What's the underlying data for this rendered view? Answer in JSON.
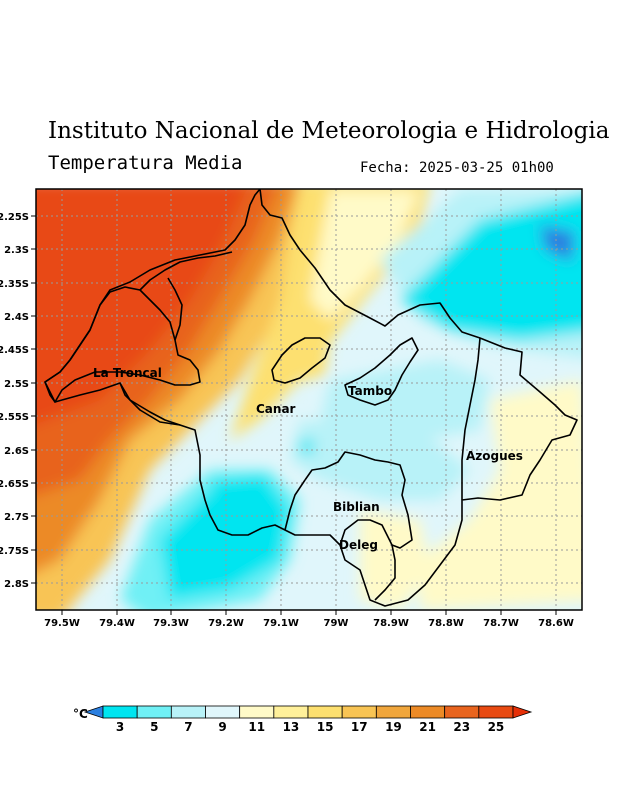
{
  "header": {
    "institution": "Instituto Nacional de Meteorologia e Hidrologia",
    "variable": "Temperatura Media",
    "date_label": "Fecha: 2025-03-25 01h00"
  },
  "map": {
    "lat_labels": [
      "2.25S",
      "2.3S",
      "2.35S",
      "2.4S",
      "2.45S",
      "2.5S",
      "2.55S",
      "2.6S",
      "2.65S",
      "2.7S",
      "2.75S",
      "2.8S"
    ],
    "lon_labels": [
      "79.5W",
      "79.4W",
      "79.3W",
      "79.2W",
      "79.1W",
      "79W",
      "78.9W",
      "78.8W",
      "78.7W",
      "78.6W"
    ],
    "places": [
      "La Troncal",
      "Canar",
      "Tambo",
      "Azogues",
      "Biblian",
      "Deleg"
    ]
  },
  "colorbar": {
    "unit": "°C",
    "ticks": [
      "3",
      "5",
      "7",
      "9",
      "11",
      "13",
      "15",
      "17",
      "19",
      "21",
      "23",
      "25"
    ],
    "colors": [
      "#2b7fe0",
      "#00e5f0",
      "#70f0f5",
      "#b8f2f8",
      "#e0f6fb",
      "#fffac8",
      "#fff09a",
      "#fde070",
      "#f8c454",
      "#f0a63c",
      "#ec8a26",
      "#e8641e",
      "#e84a12",
      "#e63008"
    ]
  }
}
